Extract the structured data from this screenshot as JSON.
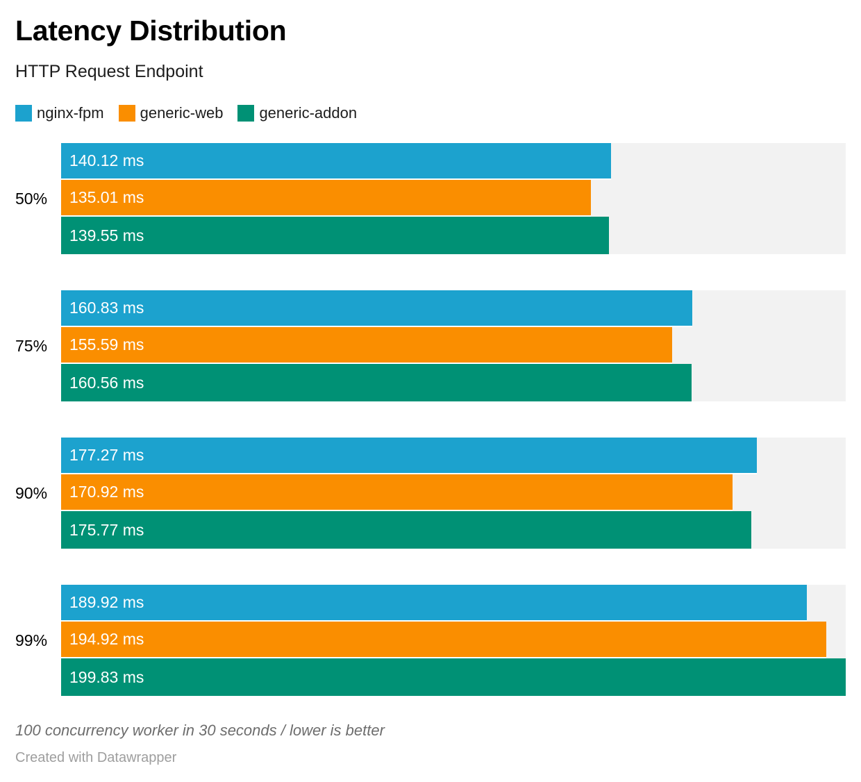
{
  "header": {
    "title": "Latency Distribution",
    "subtitle": "HTTP Request Endpoint"
  },
  "legend": {
    "position": "top",
    "items": [
      {
        "label": "nginx-fpm",
        "color": "#1ca2ce"
      },
      {
        "label": "generic-web",
        "color": "#fa8e00"
      },
      {
        "label": "generic-addon",
        "color": "#009175"
      }
    ]
  },
  "chart_data": {
    "type": "bar",
    "orientation": "horizontal",
    "title": "Latency Distribution",
    "subtitle": "HTTP Request Endpoint",
    "unit": "ms",
    "categories": [
      "50%",
      "75%",
      "90%",
      "99%"
    ],
    "series": [
      {
        "name": "nginx-fpm",
        "color": "#1ca2ce",
        "values": [
          140.12,
          160.83,
          177.27,
          189.92
        ],
        "labels": [
          "140.12 ms",
          "160.83 ms",
          "177.27 ms",
          "189.92 ms"
        ]
      },
      {
        "name": "generic-web",
        "color": "#fa8e00",
        "values": [
          135.01,
          155.59,
          170.92,
          194.92
        ],
        "labels": [
          "135.01 ms",
          "155.59 ms",
          "170.92 ms",
          "194.92 ms"
        ]
      },
      {
        "name": "generic-addon",
        "color": "#009175",
        "values": [
          139.55,
          160.56,
          175.77,
          199.83
        ],
        "labels": [
          "139.55 ms",
          "160.56 ms",
          "175.77 ms",
          "199.83 ms"
        ]
      }
    ],
    "xlim": [
      0,
      199.83
    ],
    "value_label_position": "inside-start",
    "track_color": "#f2f2f2",
    "grid": false,
    "legend_position": "top"
  },
  "footer": {
    "note": "100 concurrency worker in 30 seconds / lower is better",
    "credit": "Created with Datawrapper"
  }
}
